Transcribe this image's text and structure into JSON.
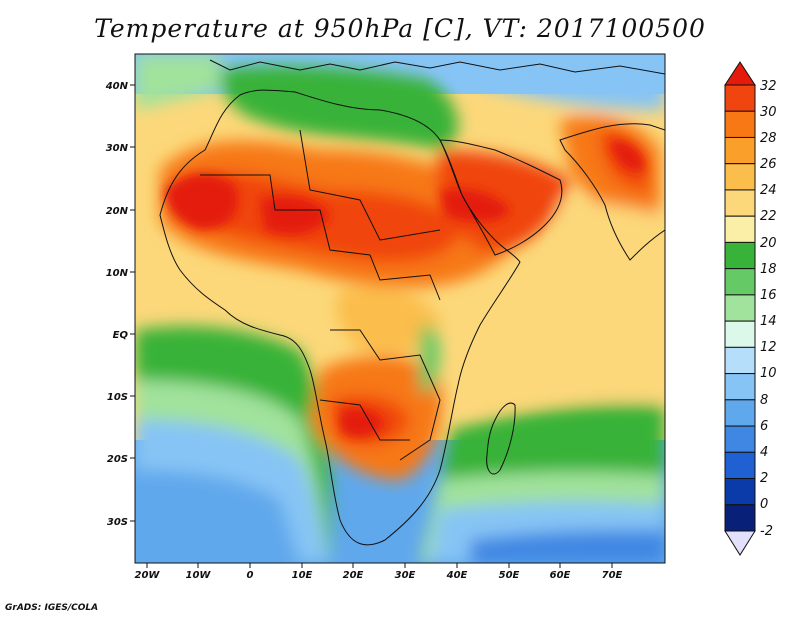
{
  "title": "Temperature at 950hPa [C], VT: 2017100500",
  "credit": "GrADS: IGES/COLA",
  "map": {
    "lon_ticks": [
      "20W",
      "10W",
      "0",
      "10E",
      "20E",
      "30E",
      "40E",
      "50E",
      "60E",
      "70E"
    ],
    "lat_ticks": [
      "40N",
      "30N",
      "20N",
      "10N",
      "EQ",
      "10S",
      "20S",
      "30S"
    ],
    "extent_lon": [
      -22,
      80
    ],
    "extent_lat": [
      -37,
      45
    ]
  },
  "colorbar": {
    "labels": [
      "32",
      "30",
      "28",
      "26",
      "24",
      "22",
      "20",
      "18",
      "16",
      "14",
      "12",
      "10",
      "8",
      "6",
      "4",
      "2",
      "0",
      "-2"
    ],
    "colors": [
      "#e41a0c",
      "#f0450f",
      "#f77814",
      "#faa02a",
      "#fbbd4c",
      "#fcd87a",
      "#fbeea7",
      "#39b239",
      "#65c965",
      "#a1e29c",
      "#dcf8ea",
      "#b5defb",
      "#86c4f5",
      "#60a8ec",
      "#3f87e3",
      "#1f60d3",
      "#0b3ba8",
      "#082078",
      "#e2e0fb"
    ]
  }
}
